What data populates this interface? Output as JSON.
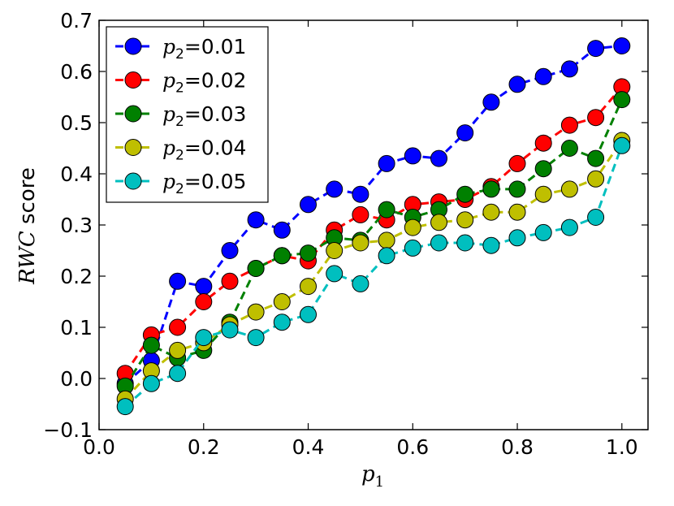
{
  "chart_data": {
    "type": "line",
    "title": "",
    "xlabel": "p",
    "xlabel_sub": "1",
    "ylabel_var": "RWC",
    "ylabel_rest": " score",
    "xlim": [
      0.0,
      1.05
    ],
    "ylim": [
      -0.1,
      0.7
    ],
    "xticks": [
      0.0,
      0.2,
      0.4,
      0.6,
      0.8,
      1.0
    ],
    "xtick_labels": [
      "0.0",
      "0.2",
      "0.4",
      "0.6",
      "0.8",
      "1.0"
    ],
    "yticks": [
      -0.1,
      0.0,
      0.1,
      0.2,
      0.3,
      0.4,
      0.5,
      0.6,
      0.7
    ],
    "ytick_labels": [
      "−0.1",
      "0.0",
      "0.1",
      "0.2",
      "0.3",
      "0.4",
      "0.5",
      "0.6",
      "0.7"
    ],
    "legend_position": "upper-left",
    "legend_var": "p",
    "legend_sub": "2",
    "x": [
      0.05,
      0.1,
      0.15,
      0.2,
      0.25,
      0.3,
      0.35,
      0.4,
      0.45,
      0.5,
      0.55,
      0.6,
      0.65,
      0.7,
      0.75,
      0.8,
      0.85,
      0.9,
      0.95,
      1.0
    ],
    "series": [
      {
        "name": "=0.01",
        "color": "#0000ff",
        "values": [
          -0.01,
          0.035,
          0.19,
          0.18,
          0.25,
          0.31,
          0.29,
          0.34,
          0.37,
          0.36,
          0.42,
          0.435,
          0.43,
          0.48,
          0.54,
          0.575,
          0.59,
          0.605,
          0.645,
          0.65
        ]
      },
      {
        "name": "=0.02",
        "color": "#ff0000",
        "values": [
          0.01,
          0.085,
          0.1,
          0.15,
          0.19,
          0.215,
          0.24,
          0.23,
          0.29,
          0.32,
          0.31,
          0.34,
          0.345,
          0.35,
          0.375,
          0.42,
          0.46,
          0.495,
          0.51,
          0.57
        ]
      },
      {
        "name": "=0.03",
        "color": "#008000",
        "values": [
          -0.015,
          0.065,
          0.04,
          0.055,
          0.11,
          0.215,
          0.24,
          0.245,
          0.275,
          0.27,
          0.33,
          0.315,
          0.33,
          0.36,
          0.37,
          0.37,
          0.41,
          0.45,
          0.43,
          0.545
        ]
      },
      {
        "name": "=0.04",
        "color": "#bfbf00",
        "values": [
          -0.04,
          0.015,
          0.055,
          0.07,
          0.105,
          0.13,
          0.15,
          0.18,
          0.25,
          0.265,
          0.27,
          0.295,
          0.305,
          0.31,
          0.325,
          0.325,
          0.36,
          0.37,
          0.39,
          0.465
        ]
      },
      {
        "name": "=0.05",
        "color": "#00bfbf",
        "values": [
          -0.055,
          -0.01,
          0.01,
          0.08,
          0.095,
          0.08,
          0.11,
          0.125,
          0.205,
          0.185,
          0.24,
          0.255,
          0.265,
          0.265,
          0.26,
          0.275,
          0.285,
          0.295,
          0.315,
          0.455
        ]
      }
    ]
  }
}
